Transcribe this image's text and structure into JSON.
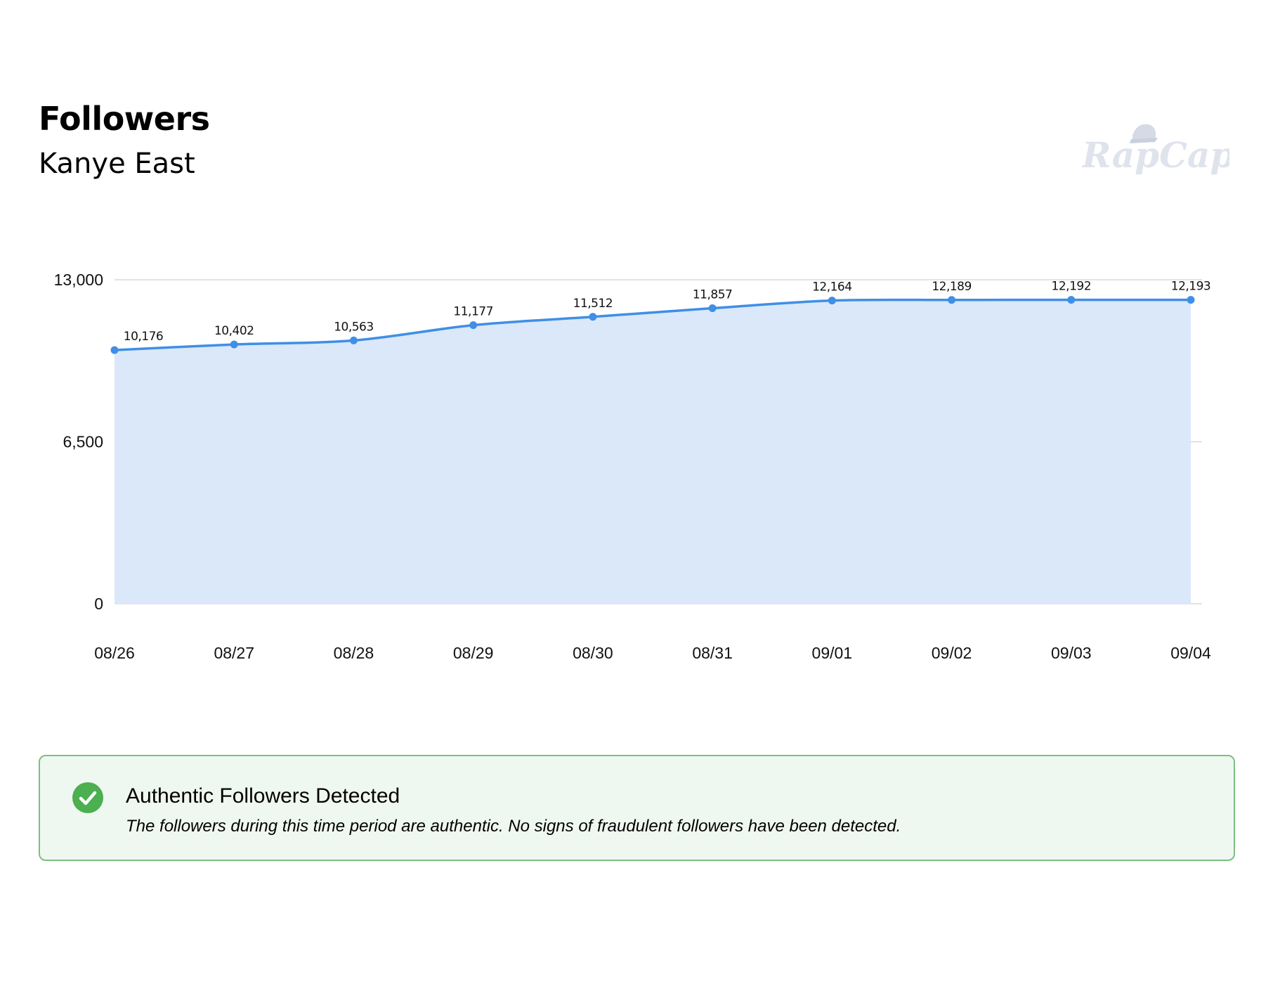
{
  "header": {
    "title": "Followers",
    "subtitle": "Kanye East",
    "logo_text": "RapCap"
  },
  "chart_data": {
    "type": "area",
    "title": "",
    "xlabel": "",
    "ylabel": "",
    "categories": [
      "08/26",
      "08/27",
      "08/28",
      "08/29",
      "08/30",
      "08/31",
      "09/01",
      "09/02",
      "09/03",
      "09/04"
    ],
    "values": [
      10176,
      10402,
      10563,
      11177,
      11512,
      11857,
      12164,
      12189,
      12192,
      12193
    ],
    "data_labels": [
      "10,176",
      "10,402",
      "10,563",
      "11,177",
      "11,512",
      "11,857",
      "12,164",
      "12,189",
      "12,192",
      "12,193"
    ],
    "yticks": [
      0,
      6500,
      13000
    ],
    "ytick_labels": [
      "0",
      "6,500",
      "13,000"
    ],
    "ylim": [
      0,
      13000
    ],
    "grid": true,
    "smooth": true,
    "colors": {
      "line": "#3f8fe6",
      "fill": "#dbe8f9",
      "grid": "#d9d9df"
    }
  },
  "alert": {
    "icon": "check-circle-icon",
    "title": "Authentic Followers Detected",
    "text": "The followers during this time period are authentic. No signs of fraudulent followers have been detected.",
    "color": "#4caf50"
  }
}
